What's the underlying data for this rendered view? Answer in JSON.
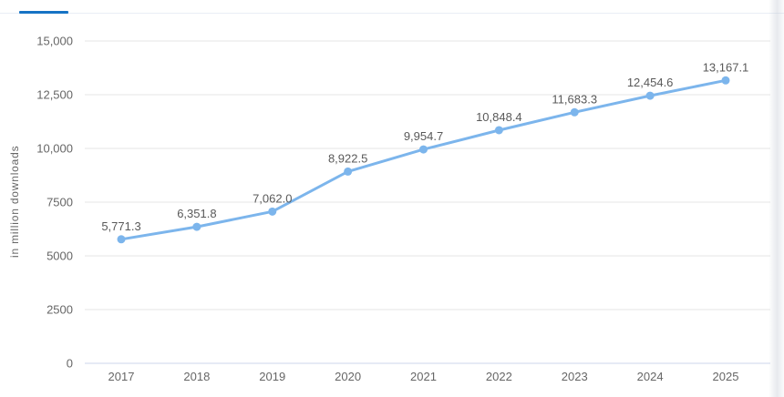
{
  "theme": {
    "background": "#ffffff",
    "accent_blue": "#1673c4",
    "divider_color": "#e9eef5"
  },
  "chart_data": {
    "type": "line",
    "title": "",
    "xlabel": "",
    "ylabel": "in million downloads",
    "categories": [
      "2017",
      "2018",
      "2019",
      "2020",
      "2021",
      "2022",
      "2023",
      "2024",
      "2025"
    ],
    "values": [
      5771.3,
      6351.8,
      7062.0,
      8922.5,
      9954.7,
      10848.4,
      11683.3,
      12454.6,
      13167.1
    ],
    "value_labels": [
      "5,771.3",
      "6,351.8",
      "7,062.0",
      "8,922.5",
      "9,954.7",
      "10,848.4",
      "11,683.3",
      "12,454.6",
      "13,167.1"
    ],
    "ylim": [
      0,
      15000
    ],
    "yticks": [
      0,
      2500,
      5000,
      7500,
      10000,
      12500,
      15000
    ],
    "ytick_labels": [
      "0",
      "2500",
      "5000",
      "7500",
      "10,000",
      "12,500",
      "15,000"
    ],
    "grid": true,
    "legend": "none",
    "marker": "circle",
    "line_color": "#7cb5ec",
    "grid_color": "#e6e6e6",
    "axis_line_color": "#ccd6eb",
    "tick_label_color": "#666666",
    "data_label_color": "#595959"
  }
}
